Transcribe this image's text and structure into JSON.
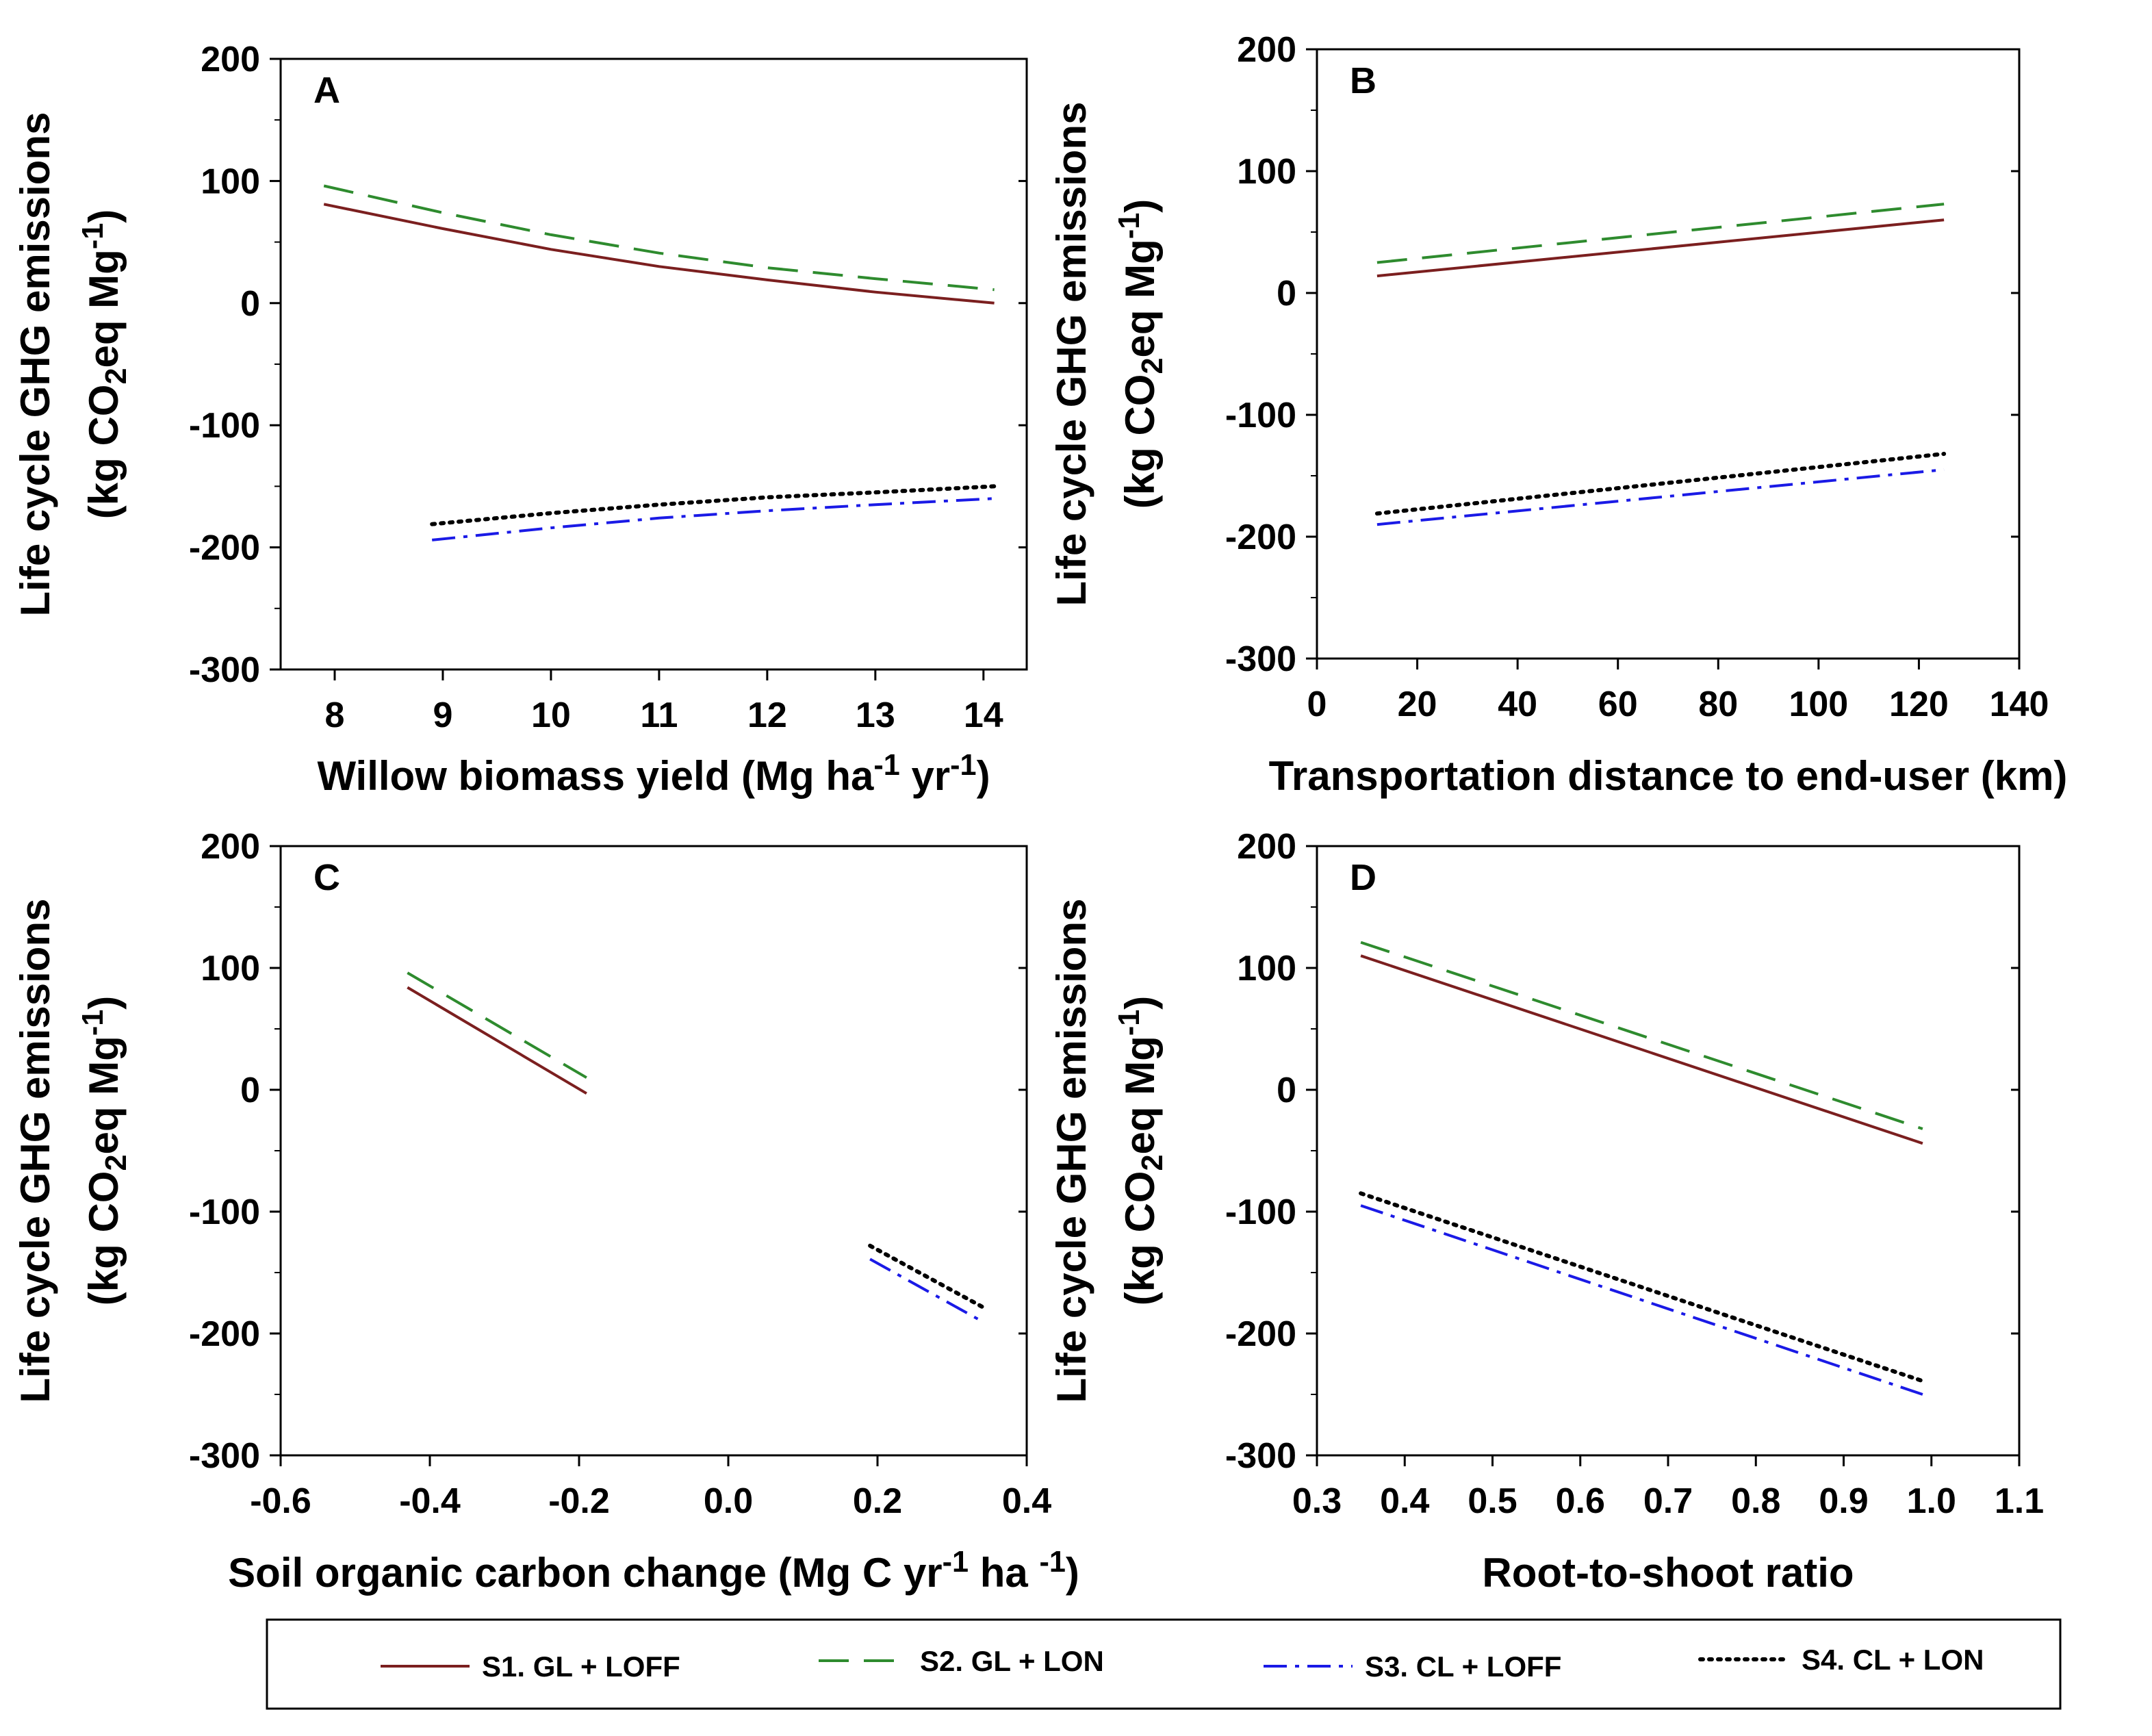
{
  "figure": {
    "ylabel_line1": "Life cycle GHG emissions",
    "ylabel_line2": "(kg CO2eq Mg-1)",
    "legend": [
      {
        "label": "S1. GL + LOFF",
        "color": "#7b1f1f",
        "dash": "solid"
      },
      {
        "label": "S2. GL + LON",
        "color": "#2e8b2e",
        "dash": "dashed"
      },
      {
        "label": "S3. CL + LOFF",
        "color": "#1a1ae6",
        "dash": "dashdot"
      },
      {
        "label": "S4. CL + LON",
        "color": "#000000",
        "dash": "dotted"
      }
    ]
  },
  "chart_data": [
    {
      "panel": "A",
      "type": "line",
      "xlabel": "Willow biomass yield (Mg ha-1 yr-1)",
      "ylabel": "Life cycle GHG emissions (kg CO2eq Mg-1)",
      "xlim": [
        7.5,
        14.4
      ],
      "ylim": [
        -300,
        200
      ],
      "xticks": [
        8,
        9,
        10,
        11,
        12,
        13,
        14
      ],
      "yticks": [
        200,
        100,
        0,
        -100,
        -200,
        -300
      ],
      "series": [
        {
          "name": "S1. GL + LOFF",
          "x": [
            7.9,
            9,
            10,
            11,
            12,
            13,
            14.1
          ],
          "y": [
            81,
            61,
            44,
            30,
            19,
            9,
            0
          ]
        },
        {
          "name": "S2. GL + LON",
          "x": [
            7.9,
            9,
            10,
            11,
            12,
            13,
            14.1
          ],
          "y": [
            96,
            74,
            56,
            41,
            29,
            20,
            11
          ]
        },
        {
          "name": "S3. CL + LOFF",
          "x": [
            8.9,
            10,
            11,
            12,
            13,
            14.1
          ],
          "y": [
            -194,
            -184,
            -176,
            -170,
            -165,
            -160
          ]
        },
        {
          "name": "S4. CL + LON",
          "x": [
            8.9,
            10,
            11,
            12,
            13,
            14.1
          ],
          "y": [
            -181,
            -172,
            -165,
            -159,
            -155,
            -150
          ]
        }
      ]
    },
    {
      "panel": "B",
      "type": "line",
      "xlabel": "Transportation distance to end-user (km)",
      "ylabel": "Life cycle GHG emissions (kg CO2eq Mg-1)",
      "xlim": [
        0,
        140
      ],
      "ylim": [
        -300,
        200
      ],
      "xticks": [
        0,
        20,
        40,
        60,
        80,
        100,
        120,
        140
      ],
      "yticks": [
        200,
        100,
        0,
        -100,
        -200,
        -300
      ],
      "series": [
        {
          "name": "S1. GL + LOFF",
          "x": [
            12,
            125
          ],
          "y": [
            14,
            60
          ]
        },
        {
          "name": "S2. GL + LON",
          "x": [
            12,
            125
          ],
          "y": [
            25,
            73
          ]
        },
        {
          "name": "S3. CL + LOFF",
          "x": [
            12,
            125
          ],
          "y": [
            -190,
            -145
          ]
        },
        {
          "name": "S4. CL + LON",
          "x": [
            12,
            125
          ],
          "y": [
            -181,
            -132
          ]
        }
      ]
    },
    {
      "panel": "C",
      "type": "line",
      "xlabel": "Soil organic carbon change (Mg C yr-1 ha -1)",
      "ylabel": "Life cycle GHG emissions (kg CO2eq Mg-1)",
      "xlim": [
        -0.6,
        0.4
      ],
      "ylim": [
        -300,
        200
      ],
      "xticks": [
        "-0.6",
        "-0.4",
        "-0.2",
        "0.0",
        "0.2",
        "0.4"
      ],
      "yticks": [
        200,
        100,
        0,
        -100,
        -200,
        -300
      ],
      "series": [
        {
          "name": "S1. GL + LOFF",
          "x": [
            -0.43,
            -0.19
          ],
          "y": [
            84,
            -3
          ]
        },
        {
          "name": "S2. GL + LON",
          "x": [
            -0.43,
            -0.19
          ],
          "y": [
            96,
            10
          ]
        },
        {
          "name": "S3. CL + LOFF",
          "x": [
            0.19,
            0.34
          ],
          "y": [
            -139,
            -190
          ]
        },
        {
          "name": "S4. CL + LON",
          "x": [
            0.19,
            0.34
          ],
          "y": [
            -128,
            -178
          ]
        }
      ]
    },
    {
      "panel": "D",
      "type": "line",
      "xlabel": "Root-to-shoot ratio",
      "ylabel": "Life cycle GHG emissions (kg CO2eq Mg-1)",
      "xlim": [
        0.3,
        1.1
      ],
      "ylim": [
        -300,
        200
      ],
      "xticks": [
        "0.3",
        "0.4",
        "0.5",
        "0.6",
        "0.7",
        "0.8",
        "0.9",
        "1.0",
        "1.1"
      ],
      "yticks": [
        200,
        100,
        0,
        -100,
        -200,
        -300
      ],
      "series": [
        {
          "name": "S1. GL + LOFF",
          "x": [
            0.35,
            0.99
          ],
          "y": [
            110,
            -44
          ]
        },
        {
          "name": "S2. GL + LON",
          "x": [
            0.35,
            0.99
          ],
          "y": [
            121,
            -32
          ]
        },
        {
          "name": "S3. CL + LOFF",
          "x": [
            0.35,
            0.99
          ],
          "y": [
            -95,
            -250
          ]
        },
        {
          "name": "S4. CL + LON",
          "x": [
            0.35,
            0.99
          ],
          "y": [
            -85,
            -239
          ]
        }
      ]
    }
  ]
}
